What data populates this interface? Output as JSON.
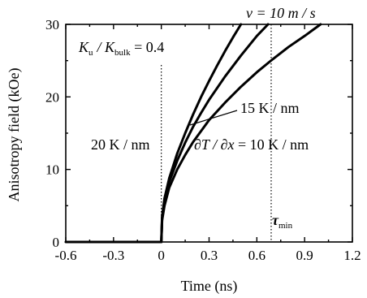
{
  "chart_data": {
    "type": "line",
    "xlabel": "Time (ns)",
    "ylabel": "Anisotropy field (kOe)",
    "xlim": [
      -0.6,
      1.2
    ],
    "ylim": [
      0,
      30
    ],
    "x_ticks": [
      "-0.6",
      "-0.3",
      "0",
      "0.3",
      "0.6",
      "0.9",
      "1.2"
    ],
    "y_ticks": [
      "0",
      "10",
      "20",
      "30"
    ],
    "grid": false,
    "tau_min": 0.69,
    "series": [
      {
        "name": "20 K / nm",
        "x": [
          -0.6,
          -0.3,
          0,
          0.005,
          0.02,
          0.05,
          0.1,
          0.15,
          0.2,
          0.25,
          0.3,
          0.35,
          0.4,
          0.45,
          0.5
        ],
        "y": [
          0,
          0,
          0,
          3.5,
          6.0,
          8.8,
          12.2,
          15.0,
          17.6,
          20.0,
          22.2,
          24.3,
          26.3,
          28.2,
          30.0
        ]
      },
      {
        "name": "15 K / nm",
        "x": [
          0,
          0.005,
          0.02,
          0.05,
          0.1,
          0.15,
          0.2,
          0.25,
          0.3,
          0.4,
          0.5,
          0.6,
          0.67
        ],
        "y": [
          0,
          3.3,
          5.6,
          8.3,
          11.2,
          13.7,
          15.9,
          17.8,
          19.6,
          22.8,
          25.7,
          28.4,
          30.0
        ]
      },
      {
        "name": "∂T / ∂x = 10 K / nm",
        "x": [
          0,
          0.005,
          0.02,
          0.05,
          0.1,
          0.15,
          0.2,
          0.3,
          0.4,
          0.5,
          0.6,
          0.7,
          0.8,
          0.9,
          1.0
        ],
        "y": [
          0,
          3.0,
          5.0,
          7.5,
          10.0,
          12.0,
          13.8,
          16.8,
          19.2,
          21.4,
          23.4,
          25.2,
          26.9,
          28.4,
          30.0
        ]
      }
    ],
    "annotations": {
      "velocity": "v = 10 m / s",
      "ratio_k": "K",
      "ratio_u_sub": "u",
      "ratio_bulk_sub": "bulk",
      "ratio_value": "/ K",
      "ratio_eq": " = 0.4",
      "label_20": "20 K / nm",
      "label_15": "15 K / nm",
      "label_10_prefix": "∂T / ∂x",
      "label_10_suffix": " = 10 K / nm",
      "tau": "τ",
      "tau_sub": "min"
    }
  }
}
